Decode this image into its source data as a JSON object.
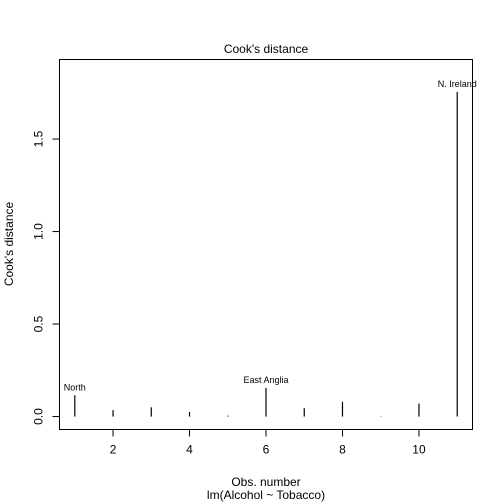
{
  "chart_data": {
    "type": "bar",
    "title": "Cook's distance",
    "xlabel": "Obs. number",
    "subtitle": "lm(Alcohol ~ Tobacco)",
    "ylabel": "Cook's distance",
    "x": [
      1,
      2,
      3,
      4,
      5,
      6,
      7,
      8,
      9,
      10,
      11
    ],
    "values": [
      0.115,
      0.035,
      0.05,
      0.025,
      0.005,
      0.155,
      0.045,
      0.08,
      0.002,
      0.07,
      1.755
    ],
    "xlim": [
      0.6,
      11.4
    ],
    "ylim": [
      -0.07,
      1.93
    ],
    "x_ticks": [
      2,
      4,
      6,
      8,
      10
    ],
    "y_ticks": [
      0.0,
      0.5,
      1.0,
      1.5
    ],
    "y_tick_labels": [
      "0.0",
      "0.5",
      "1.0",
      "1.5"
    ],
    "annotations": [
      {
        "x": 1,
        "text": "North"
      },
      {
        "x": 6,
        "text": "East Anglia"
      },
      {
        "x": 11,
        "text": "N. Ireland"
      }
    ],
    "grid": false,
    "legend": "none",
    "colors": {
      "line": "#000000",
      "background": "#ffffff"
    }
  }
}
